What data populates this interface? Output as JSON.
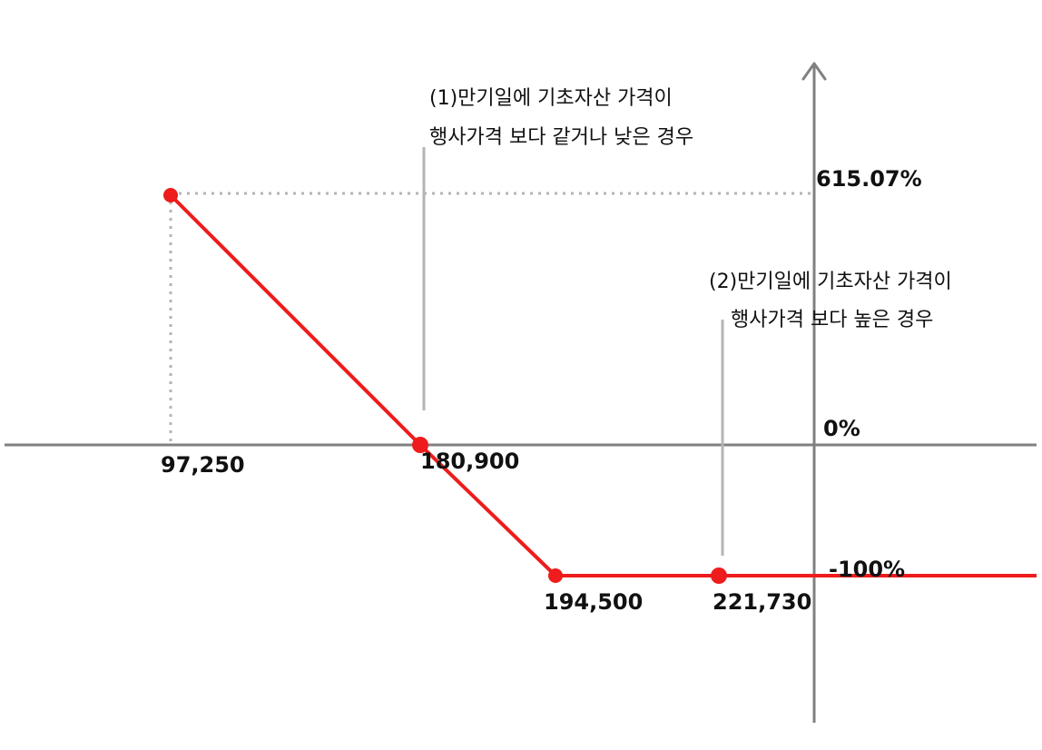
{
  "chart_data": {
    "type": "line",
    "title": "",
    "xlabel": "",
    "ylabel": "",
    "grid": false,
    "legend": "none",
    "colors": {
      "payoff": "#ee1c1c",
      "axis": "#808080",
      "guide": "#b4b4b4",
      "leader": "#b4b4b4"
    },
    "series": [
      {
        "points": [
          {
            "x": 97250,
            "y": 615.07
          },
          {
            "x": 180900,
            "y": 0
          },
          {
            "x": 194500,
            "y": -100
          },
          {
            "x": 221730,
            "y": -100
          }
        ]
      }
    ],
    "x_tick_labels": [
      {
        "x": 97250,
        "label": "97,250"
      },
      {
        "x": 180900,
        "label": "180,900"
      },
      {
        "x": 194500,
        "label": "194,500"
      },
      {
        "x": 221730,
        "label": "221,730"
      }
    ],
    "y_tick_labels": [
      {
        "y": 615.07,
        "label": "615.07%"
      },
      {
        "y": 0,
        "label": "0%"
      },
      {
        "y": -100,
        "label": "-100%"
      }
    ],
    "annotations": [
      {
        "lines": [
          "(1)만기일에 기초자산 가격이",
          "행사가격 보다 같거나 낮은 경우"
        ],
        "x": 168000
      },
      {
        "lines": [
          "(2)만기일에 기초자산 가격이",
          "행사가격 보다 높은 경우"
        ],
        "x": 215000
      }
    ]
  }
}
